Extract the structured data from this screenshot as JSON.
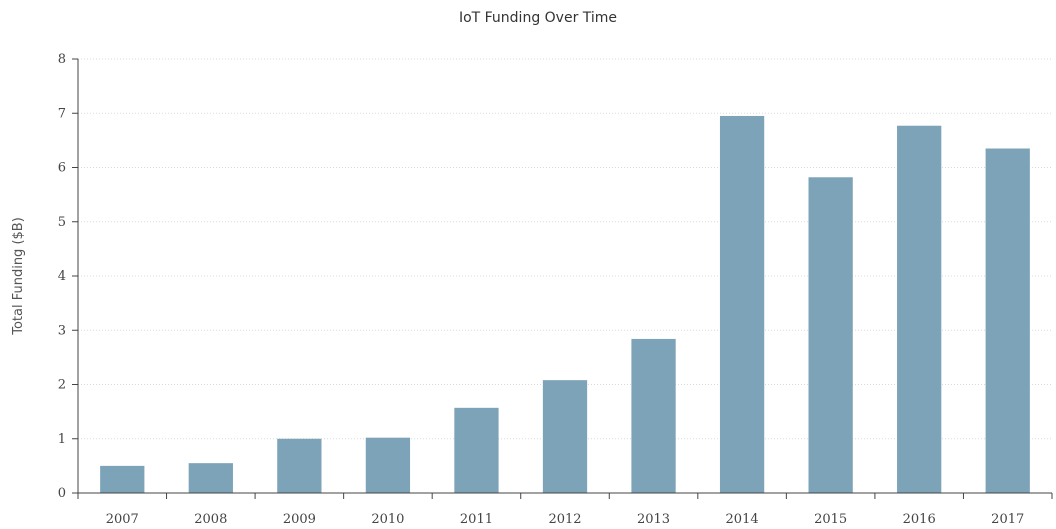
{
  "chart_data": {
    "type": "bar",
    "title": "IoT Funding Over Time",
    "xlabel": "",
    "ylabel": "Total Funding ($B)",
    "categories": [
      "2007",
      "2008",
      "2009",
      "2010",
      "2011",
      "2012",
      "2013",
      "2014",
      "2015",
      "2016",
      "2017"
    ],
    "values": [
      0.5,
      0.55,
      1.0,
      1.02,
      1.57,
      2.08,
      2.84,
      6.95,
      5.82,
      6.77,
      6.35
    ],
    "ylim": [
      0,
      8
    ],
    "yticks": [
      "0",
      "1",
      "2",
      "3",
      "4",
      "5",
      "6",
      "7",
      "8"
    ],
    "grid": true,
    "bar_color": "#7da3b8",
    "grid_color": "#d9d9d9",
    "axis_color": "#444444"
  }
}
